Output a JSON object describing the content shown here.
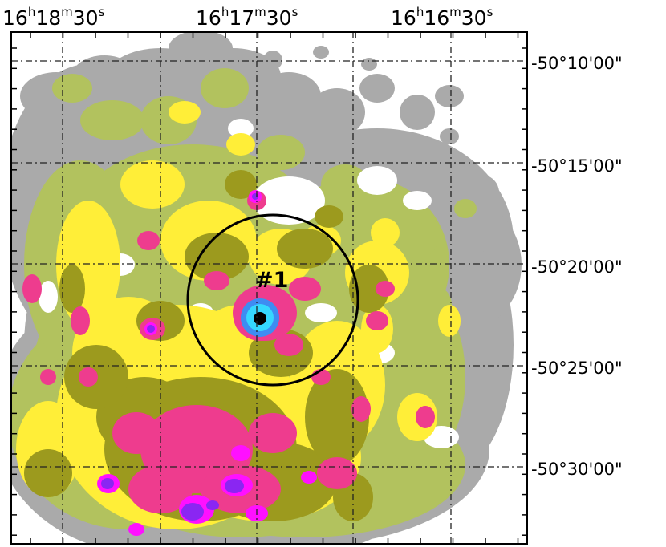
{
  "map": {
    "palette": {
      "background": "#ffffff",
      "level_1": "#aaaaaa",
      "level_2": "#b2c25e",
      "level_3": "#ffee38",
      "level_4": "#9c9a1e",
      "level_5": "#ee3c8e",
      "level_6": "#ff10ff",
      "level_7": "#8a26f2",
      "peak_outer": "#3e8cf2",
      "peak_inner": "#35d8ff",
      "peak_core": "#000000"
    },
    "grid_style": "dash-dot",
    "ra_ticks": [
      {
        "h": "16",
        "m": "18",
        "s": "30"
      },
      {
        "h": "16",
        "m": "17",
        "s": "30"
      },
      {
        "h": "16",
        "m": "16",
        "s": "30"
      }
    ],
    "ra_units": {
      "h": "h",
      "m": "m",
      "s": "s"
    },
    "dec_ticks": [
      "-50°10'00\"",
      "-50°15'00\"",
      "-50°20'00\"",
      "-50°25'00\"",
      "-50°30'00\""
    ],
    "source": {
      "label": "#1",
      "ring": "circle"
    }
  }
}
